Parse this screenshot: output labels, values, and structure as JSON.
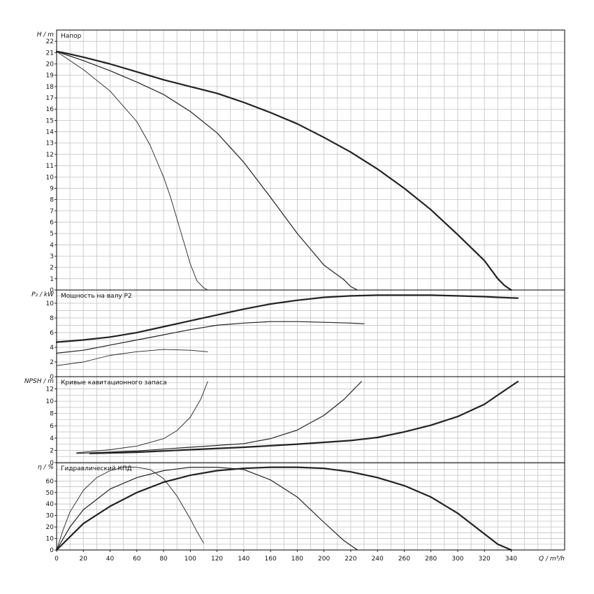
{
  "chart_data": {
    "type": "line",
    "x_axis": {
      "label": "Q / m³/h",
      "range": [
        0,
        380
      ],
      "ticks": [
        0,
        20,
        40,
        60,
        80,
        100,
        120,
        140,
        160,
        180,
        200,
        220,
        240,
        260,
        280,
        300,
        320,
        340
      ]
    },
    "grid": true,
    "panels": [
      {
        "id": "head",
        "title": "Напор",
        "ylabel": "H / m",
        "ylim": [
          0,
          23
        ],
        "yticks": [
          0,
          1,
          2,
          3,
          4,
          5,
          6,
          7,
          8,
          9,
          10,
          11,
          12,
          13,
          14,
          15,
          16,
          17,
          18,
          19,
          20,
          21,
          22
        ],
        "series": [
          {
            "weight": "thin",
            "x": [
              0,
              5,
              20,
              40,
              60,
              70,
              80,
              85,
              90,
              95,
              100,
              105,
              110,
              113
            ],
            "y": [
              21.1,
              20.7,
              19.5,
              17.6,
              14.9,
              12.8,
              10.0,
              8.3,
              6.3,
              4.3,
              2.3,
              0.8,
              0.2,
              0
            ]
          },
          {
            "weight": "medium",
            "x": [
              0,
              5,
              20,
              40,
              60,
              80,
              100,
              120,
              140,
              160,
              180,
              200,
              215,
              220,
              225
            ],
            "y": [
              21.1,
              20.9,
              20.3,
              19.4,
              18.4,
              17.3,
              15.8,
              13.9,
              11.3,
              8.2,
              5.0,
              2.2,
              0.9,
              0.3,
              0
            ]
          },
          {
            "weight": "thick",
            "x": [
              0,
              5,
              20,
              40,
              60,
              80,
              100,
              120,
              140,
              160,
              180,
              200,
              220,
              240,
              260,
              280,
              300,
              320,
              330,
              335,
              340
            ],
            "y": [
              21.1,
              21.0,
              20.6,
              20.0,
              19.3,
              18.6,
              18.0,
              17.4,
              16.6,
              15.7,
              14.7,
              13.5,
              12.2,
              10.7,
              9.0,
              7.1,
              4.9,
              2.6,
              1.0,
              0.4,
              0
            ]
          }
        ]
      },
      {
        "id": "power",
        "title": "Мощность на валу P2",
        "ylabel": "P₂ / kW",
        "ylim": [
          0,
          11.8
        ],
        "yticks": [
          0,
          2,
          4,
          6,
          8,
          10
        ],
        "series": [
          {
            "weight": "thin",
            "x": [
              0,
              20,
              40,
              60,
              80,
              100,
              113
            ],
            "y": [
              1.5,
              2.0,
              2.9,
              3.4,
              3.7,
              3.6,
              3.4
            ]
          },
          {
            "weight": "medium",
            "x": [
              0,
              20,
              40,
              60,
              80,
              100,
              120,
              140,
              160,
              180,
              200,
              220,
              230
            ],
            "y": [
              3.2,
              3.6,
              4.3,
              5.0,
              5.7,
              6.4,
              7.0,
              7.3,
              7.5,
              7.5,
              7.4,
              7.3,
              7.2
            ]
          },
          {
            "weight": "thick",
            "x": [
              0,
              20,
              40,
              60,
              80,
              100,
              120,
              140,
              160,
              180,
              200,
              220,
              240,
              260,
              280,
              300,
              320,
              330,
              345
            ],
            "y": [
              4.7,
              5.0,
              5.4,
              6.0,
              6.8,
              7.6,
              8.4,
              9.2,
              9.9,
              10.4,
              10.8,
              11.0,
              11.1,
              11.1,
              11.1,
              11.0,
              10.9,
              10.8,
              10.7
            ]
          }
        ]
      },
      {
        "id": "npsh",
        "title": "Кривые кавитационного запаса",
        "ylabel": "NPSH / m",
        "ylim": [
          0,
          14
        ],
        "yticks": [
          0,
          2,
          4,
          6,
          8,
          10,
          12
        ],
        "series": [
          {
            "weight": "thin",
            "x": [
              15,
              40,
              60,
              80,
              90,
              100,
              108,
              113
            ],
            "y": [
              1.6,
              2.1,
              2.7,
              3.9,
              5.2,
              7.4,
              10.4,
              13.2
            ]
          },
          {
            "weight": "medium",
            "x": [
              15,
              60,
              100,
              140,
              160,
              180,
              200,
              215,
              228
            ],
            "y": [
              1.5,
              1.9,
              2.5,
              3.1,
              3.9,
              5.3,
              7.7,
              10.3,
              13.2
            ]
          },
          {
            "weight": "thick",
            "x": [
              25,
              60,
              100,
              140,
              180,
              220,
              240,
              260,
              280,
              300,
              320,
              330,
              345
            ],
            "y": [
              1.5,
              1.7,
              2.1,
              2.5,
              3.0,
              3.6,
              4.1,
              5.0,
              6.1,
              7.5,
              9.5,
              11.0,
              13.2
            ]
          }
        ]
      },
      {
        "id": "efficiency",
        "title": "Гидравлический КПД",
        "ylabel": "η / %",
        "ylim": [
          0,
          76
        ],
        "yticks": [
          0,
          10,
          20,
          30,
          40,
          50,
          60
        ],
        "series": [
          {
            "weight": "thin",
            "x": [
              0,
              5,
              10,
              20,
              30,
              40,
              50,
              60,
              70,
              80,
              90,
              100,
              105,
              110
            ],
            "y": [
              0,
              18,
              33,
              52,
              63,
              69,
              72,
              72,
              70,
              62,
              47,
              27,
              16,
              6
            ]
          },
          {
            "weight": "medium",
            "x": [
              0,
              10,
              20,
              40,
              60,
              80,
              100,
              120,
              140,
              160,
              180,
              200,
              215,
              225
            ],
            "y": [
              0,
              20,
              35,
              53,
              63,
              69,
              72,
              72,
              70,
              61,
              46,
              24,
              8,
              0
            ]
          },
          {
            "weight": "thick",
            "x": [
              0,
              20,
              40,
              60,
              80,
              100,
              120,
              140,
              160,
              180,
              200,
              220,
              240,
              260,
              280,
              300,
              320,
              330,
              340
            ],
            "y": [
              0,
              23,
              38,
              50,
              59,
              65,
              69,
              71,
              72,
              72,
              71,
              68,
              63,
              56,
              46,
              32,
              14,
              5,
              0
            ]
          }
        ]
      }
    ]
  }
}
